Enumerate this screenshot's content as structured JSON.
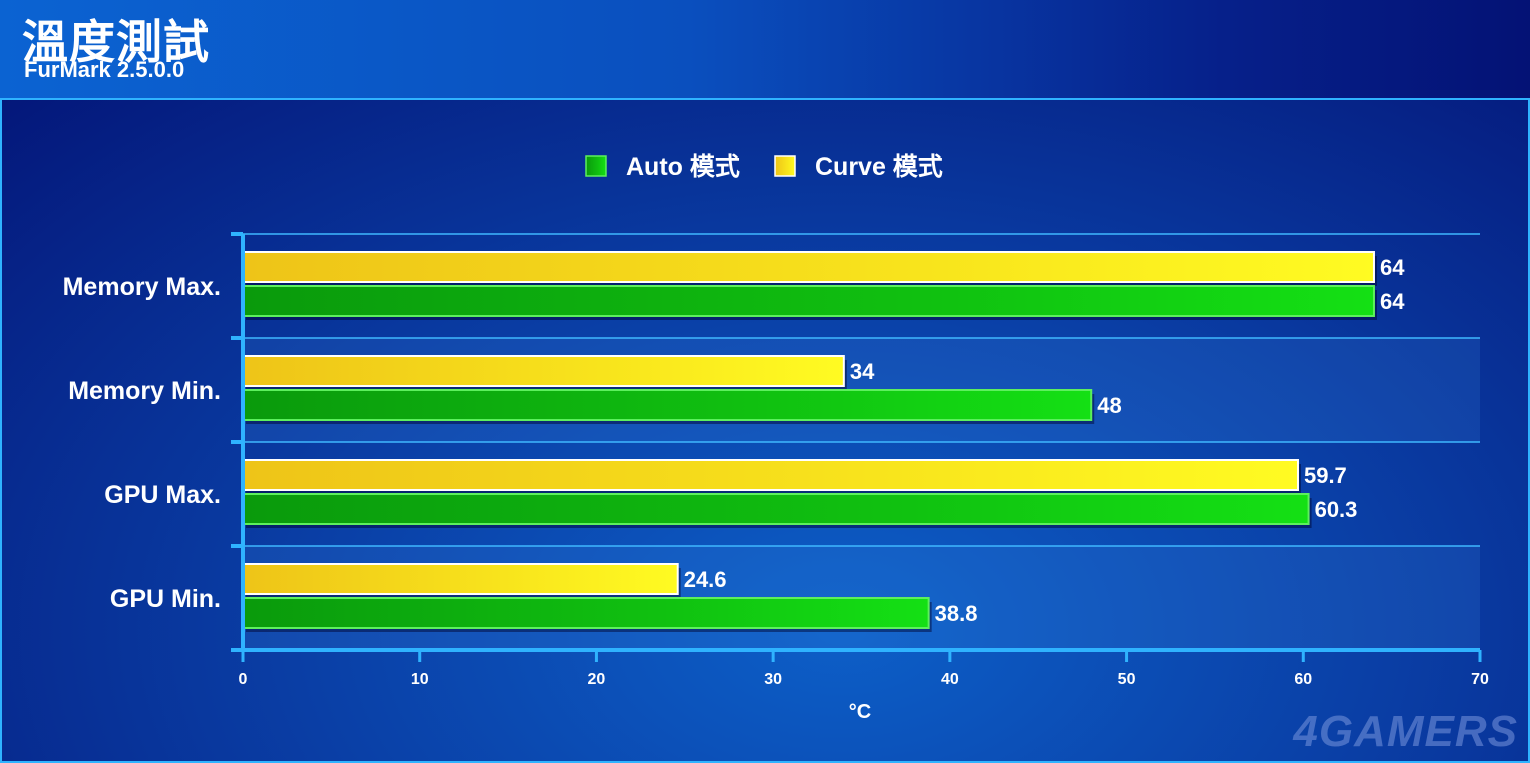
{
  "header": {
    "title": "溫度測試",
    "subtitle": "FurMark 2.5.0.0"
  },
  "watermark": "4GAMERS",
  "colors": {
    "auto": "#12c812",
    "curve": "#f6e21a",
    "gridline": "#3fb8ff",
    "axis": "#2fb3ff"
  },
  "chart_data": {
    "type": "bar",
    "orientation": "horizontal",
    "categories": [
      "Memory Max.",
      "Memory Min.",
      "GPU Max.",
      "GPU Min."
    ],
    "series": [
      {
        "name": "Curve 模式",
        "values": [
          64,
          34,
          59.7,
          24.6
        ]
      },
      {
        "name": "Auto 模式",
        "values": [
          64,
          48,
          60.3,
          38.8
        ]
      }
    ],
    "value_labels": {
      "Curve 模式": [
        "64",
        "34",
        "59.7",
        "24.6"
      ],
      "Auto 模式": [
        "64",
        "48",
        "60.3",
        "38.8"
      ]
    },
    "xlabel": "°C",
    "xlim": [
      0,
      70
    ],
    "xticks": [
      "0",
      "10",
      "20",
      "30",
      "40",
      "50",
      "60",
      "70"
    ],
    "legend": {
      "placement": "top-center",
      "order": [
        "Auto 模式",
        "Curve 模式"
      ]
    },
    "grid": true
  }
}
